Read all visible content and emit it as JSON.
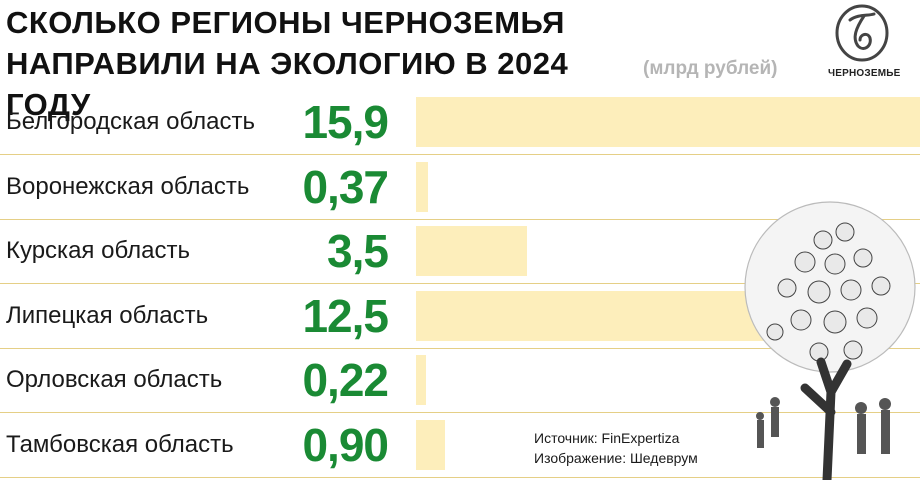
{
  "header": {
    "title_line1": "СКОЛЬКО РЕГИОНЫ ЧЕРНОЗЕМЬЯ",
    "title_line2": "НАПРАВИЛИ НА ЭКОЛОГИЮ В 2024 ГОДУ",
    "unit": "(млрд рублей)"
  },
  "logo": {
    "text": "ЧЕРНОЗЕМЬЕ"
  },
  "footer": {
    "source": "Источник: FinExpertiza",
    "image_credit": "Изображение: Шедеврум"
  },
  "colors": {
    "value": "#1a8a34",
    "bar": "#fdeebb",
    "separator": "#e5cf86"
  },
  "chart_data": {
    "type": "bar",
    "orientation": "horizontal",
    "title": "СКОЛЬКО РЕГИОНЫ ЧЕРНОЗЕМЬЯ НАПРАВИЛИ НА ЭКОЛОГИЮ В 2024 ГОДУ",
    "ylabel": "(млрд рублей)",
    "categories": [
      "Белгородская область",
      "Воронежская область",
      "Курская область",
      "Липецкая область",
      "Орловская область",
      "Тамбовская область"
    ],
    "labels": [
      "15,9",
      "0,37",
      "3,5",
      "12,5",
      "0,22",
      "0,90"
    ],
    "values": [
      15.9,
      0.37,
      3.5,
      12.5,
      0.22,
      0.9
    ],
    "xlim": [
      0,
      15.9
    ]
  }
}
